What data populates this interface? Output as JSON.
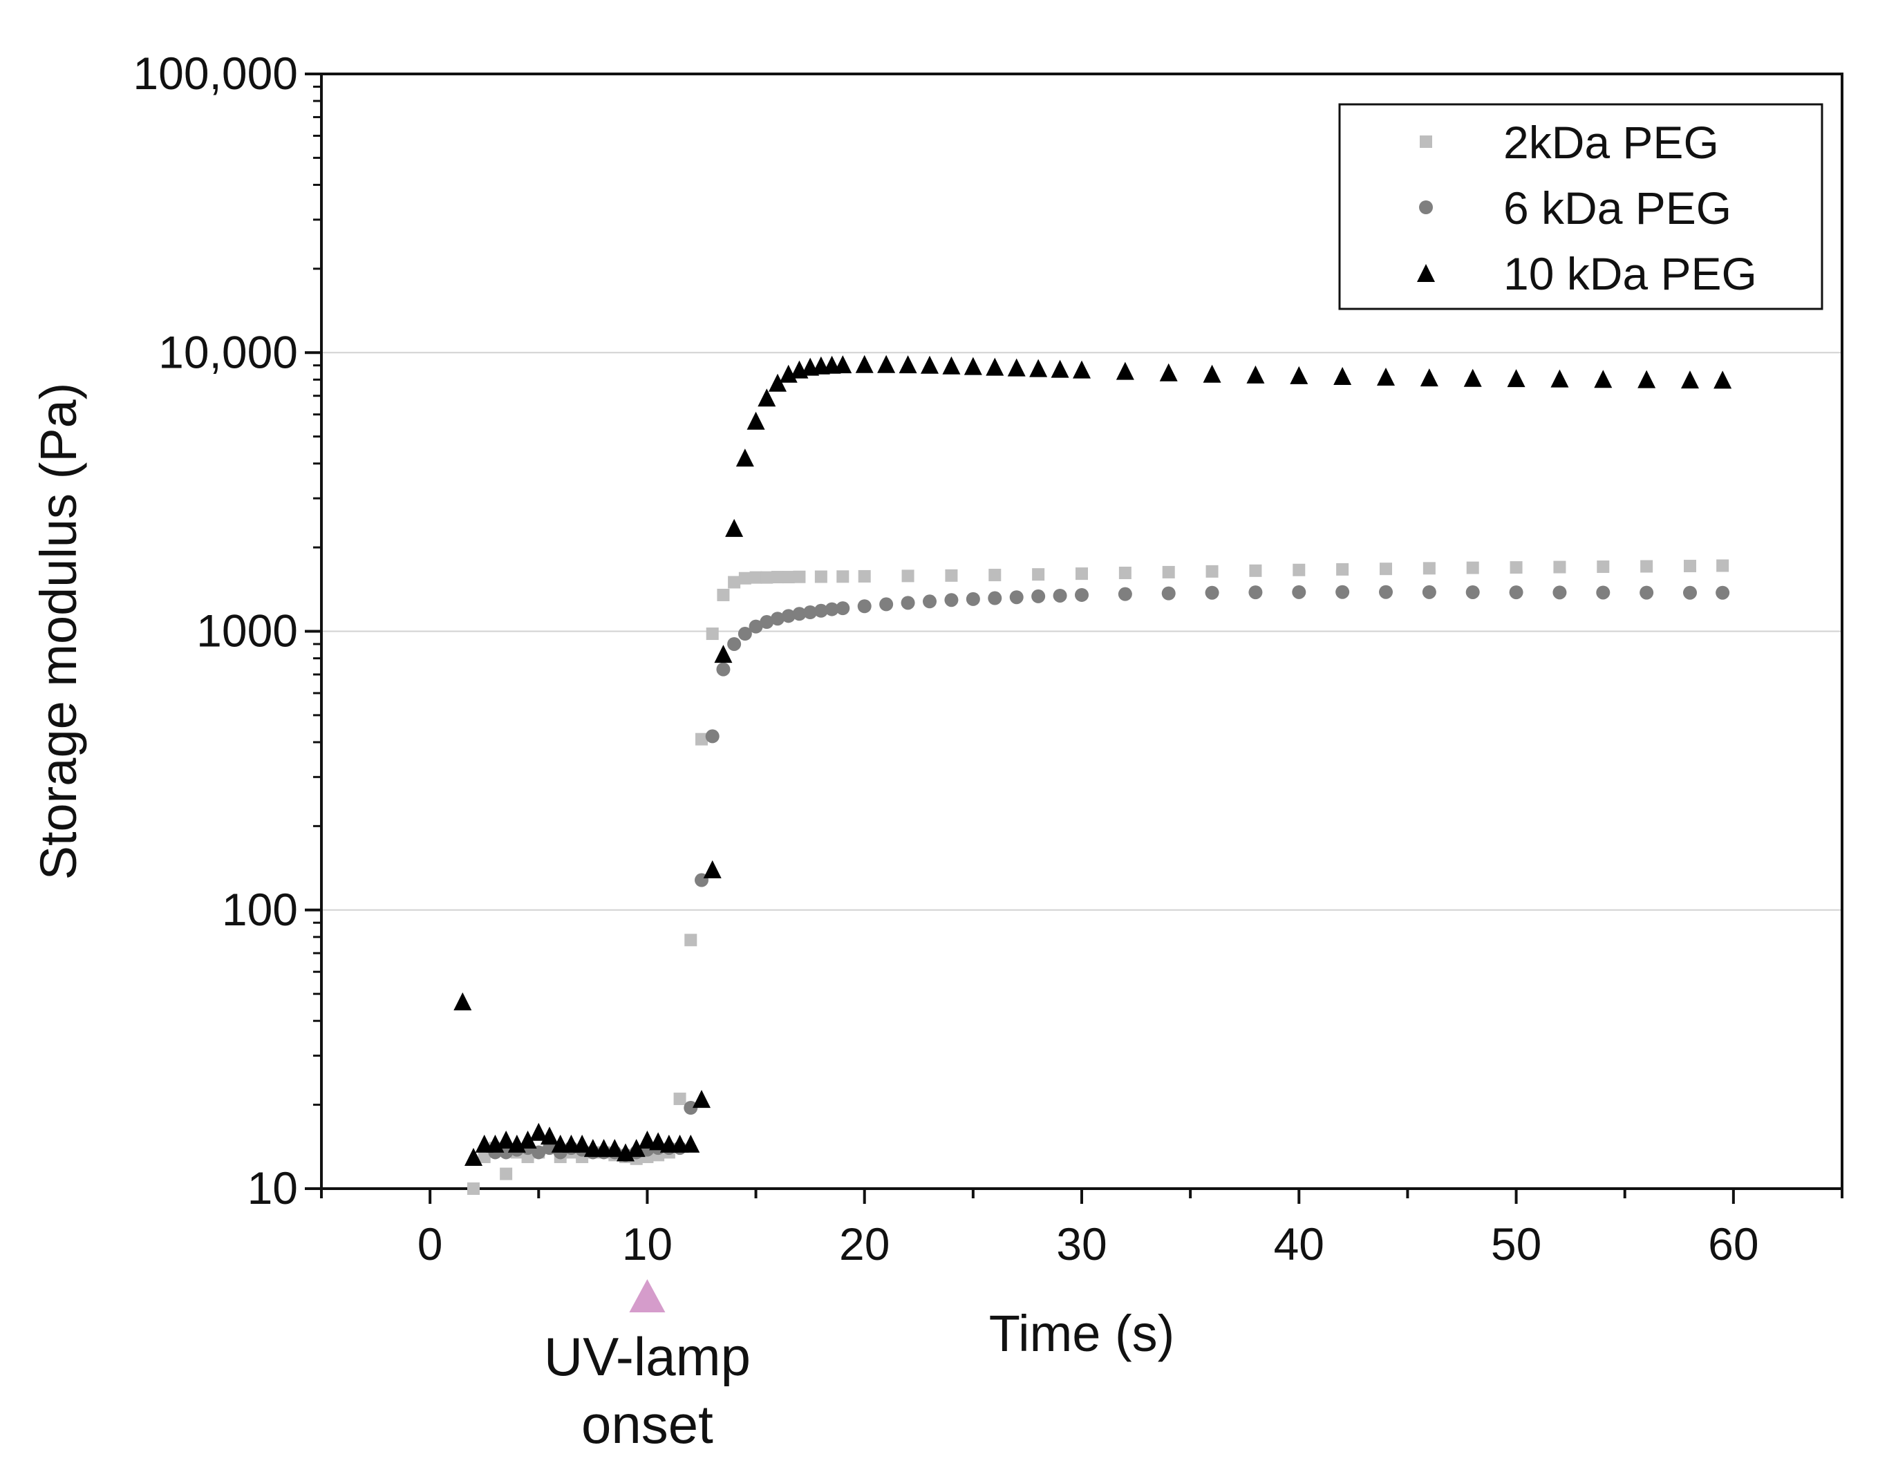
{
  "chart_data": {
    "type": "scatter",
    "title": "",
    "xlabel": "Time (s)",
    "ylabel": "Storage modulus (Pa)",
    "xlim": [
      -5,
      65
    ],
    "ylim": [
      10,
      100000
    ],
    "yscale": "log",
    "grid": "horizontal major gridlines at 100, 1000 and 10,000",
    "legend_position": "top-right",
    "x_ticks": [
      0,
      10,
      20,
      30,
      40,
      50,
      60
    ],
    "x_tick_labels": [
      "0",
      "10",
      "20",
      "30",
      "40",
      "50",
      "60"
    ],
    "y_ticks": [
      10,
      100,
      1000,
      10000,
      100000
    ],
    "y_tick_labels": [
      "10",
      "100",
      "1000",
      "10,000",
      "100,000"
    ],
    "series": [
      {
        "name": "2kDa PEG",
        "marker": "square",
        "color": "#bdbdbd",
        "points": [
          [
            2,
            10
          ],
          [
            2.5,
            13
          ],
          [
            3,
            14
          ],
          [
            3.5,
            11.3
          ],
          [
            4,
            13.5
          ],
          [
            4.5,
            13
          ],
          [
            5,
            13.5
          ],
          [
            5.5,
            14
          ],
          [
            6,
            13
          ],
          [
            6.5,
            13.5
          ],
          [
            7,
            13
          ],
          [
            7.5,
            13.5
          ],
          [
            8,
            13.5
          ],
          [
            8.5,
            13.2
          ],
          [
            9,
            13
          ],
          [
            9.5,
            12.8
          ],
          [
            10,
            13
          ],
          [
            10.5,
            13.2
          ],
          [
            11,
            13.5
          ],
          [
            11.5,
            21
          ],
          [
            12,
            78
          ],
          [
            12.5,
            410
          ],
          [
            13,
            980
          ],
          [
            13.5,
            1350
          ],
          [
            14,
            1500
          ],
          [
            14.5,
            1550
          ],
          [
            15,
            1560
          ],
          [
            15.5,
            1560
          ],
          [
            16,
            1565
          ],
          [
            16.5,
            1565
          ],
          [
            17,
            1568
          ],
          [
            18,
            1570
          ],
          [
            19,
            1572
          ],
          [
            20,
            1575
          ],
          [
            22,
            1580
          ],
          [
            24,
            1585
          ],
          [
            26,
            1592
          ],
          [
            28,
            1600
          ],
          [
            30,
            1610
          ],
          [
            32,
            1620
          ],
          [
            34,
            1630
          ],
          [
            36,
            1640
          ],
          [
            38,
            1650
          ],
          [
            40,
            1660
          ],
          [
            42,
            1668
          ],
          [
            44,
            1675
          ],
          [
            46,
            1683
          ],
          [
            48,
            1690
          ],
          [
            50,
            1695
          ],
          [
            52,
            1700
          ],
          [
            54,
            1705
          ],
          [
            56,
            1710
          ],
          [
            58,
            1715
          ],
          [
            59.5,
            1720
          ]
        ]
      },
      {
        "name": "6 kDa PEG",
        "marker": "circle",
        "color": "#7f7f7f",
        "points": [
          [
            3,
            13.5
          ],
          [
            3.5,
            13.5
          ],
          [
            4,
            13.8
          ],
          [
            4.5,
            14
          ],
          [
            5,
            13.5
          ],
          [
            5.5,
            14
          ],
          [
            6,
            13.5
          ],
          [
            6.5,
            14
          ],
          [
            7,
            13.8
          ],
          [
            7.5,
            13.5
          ],
          [
            8,
            13.5
          ],
          [
            8.5,
            13.5
          ],
          [
            9,
            13.2
          ],
          [
            9.5,
            13.5
          ],
          [
            10,
            13.8
          ],
          [
            10.5,
            14
          ],
          [
            11,
            14
          ],
          [
            11.5,
            14
          ],
          [
            12,
            19.5
          ],
          [
            12.5,
            128
          ],
          [
            13,
            420
          ],
          [
            13.5,
            730
          ],
          [
            14,
            900
          ],
          [
            14.5,
            980
          ],
          [
            15,
            1040
          ],
          [
            15.5,
            1080
          ],
          [
            16,
            1110
          ],
          [
            16.5,
            1135
          ],
          [
            17,
            1155
          ],
          [
            17.5,
            1170
          ],
          [
            18,
            1185
          ],
          [
            18.5,
            1200
          ],
          [
            19,
            1210
          ],
          [
            20,
            1230
          ],
          [
            21,
            1250
          ],
          [
            22,
            1265
          ],
          [
            23,
            1280
          ],
          [
            24,
            1295
          ],
          [
            25,
            1305
          ],
          [
            26,
            1315
          ],
          [
            27,
            1325
          ],
          [
            28,
            1335
          ],
          [
            29,
            1342
          ],
          [
            30,
            1350
          ],
          [
            32,
            1360
          ],
          [
            34,
            1368
          ],
          [
            36,
            1375
          ],
          [
            38,
            1380
          ],
          [
            40,
            1382
          ],
          [
            42,
            1383
          ],
          [
            44,
            1383
          ],
          [
            46,
            1382
          ],
          [
            48,
            1381
          ],
          [
            50,
            1380
          ],
          [
            52,
            1378
          ],
          [
            54,
            1377
          ],
          [
            56,
            1376
          ],
          [
            58,
            1375
          ],
          [
            59.5,
            1375
          ]
        ]
      },
      {
        "name": "10 kDa PEG",
        "marker": "triangle",
        "color": "#000000",
        "points": [
          [
            1.5,
            47
          ],
          [
            2,
            13
          ],
          [
            2.5,
            14.5
          ],
          [
            3,
            14.5
          ],
          [
            3.5,
            15
          ],
          [
            4,
            14.5
          ],
          [
            4.5,
            15
          ],
          [
            5,
            16
          ],
          [
            5.5,
            15.5
          ],
          [
            6,
            14.5
          ],
          [
            6.5,
            14.5
          ],
          [
            7,
            14.5
          ],
          [
            7.5,
            14
          ],
          [
            8,
            14
          ],
          [
            8.5,
            14
          ],
          [
            9,
            13.5
          ],
          [
            9.5,
            14
          ],
          [
            10,
            15
          ],
          [
            10.5,
            14.8
          ],
          [
            11,
            14.5
          ],
          [
            11.5,
            14.5
          ],
          [
            12,
            14.5
          ],
          [
            12.5,
            21
          ],
          [
            13,
            140
          ],
          [
            13.5,
            830
          ],
          [
            14,
            2350
          ],
          [
            14.5,
            4200
          ],
          [
            15,
            5700
          ],
          [
            15.5,
            6900
          ],
          [
            16,
            7800
          ],
          [
            16.5,
            8400
          ],
          [
            17,
            8700
          ],
          [
            17.5,
            8900
          ],
          [
            18,
            9000
          ],
          [
            18.5,
            9050
          ],
          [
            19,
            9080
          ],
          [
            20,
            9100
          ],
          [
            21,
            9100
          ],
          [
            22,
            9080
          ],
          [
            23,
            9050
          ],
          [
            24,
            9000
          ],
          [
            25,
            8950
          ],
          [
            26,
            8900
          ],
          [
            27,
            8850
          ],
          [
            28,
            8800
          ],
          [
            29,
            8750
          ],
          [
            30,
            8700
          ],
          [
            32,
            8600
          ],
          [
            34,
            8500
          ],
          [
            36,
            8400
          ],
          [
            38,
            8350
          ],
          [
            40,
            8300
          ],
          [
            42,
            8250
          ],
          [
            44,
            8200
          ],
          [
            46,
            8150
          ],
          [
            48,
            8120
          ],
          [
            50,
            8100
          ],
          [
            52,
            8080
          ],
          [
            54,
            8050
          ],
          [
            56,
            8030
          ],
          [
            58,
            8010
          ],
          [
            59.5,
            8000
          ]
        ]
      }
    ],
    "annotation": {
      "x": 10,
      "line1": "UV-lamp",
      "line2": "onset",
      "color": "#d59ccb"
    }
  }
}
